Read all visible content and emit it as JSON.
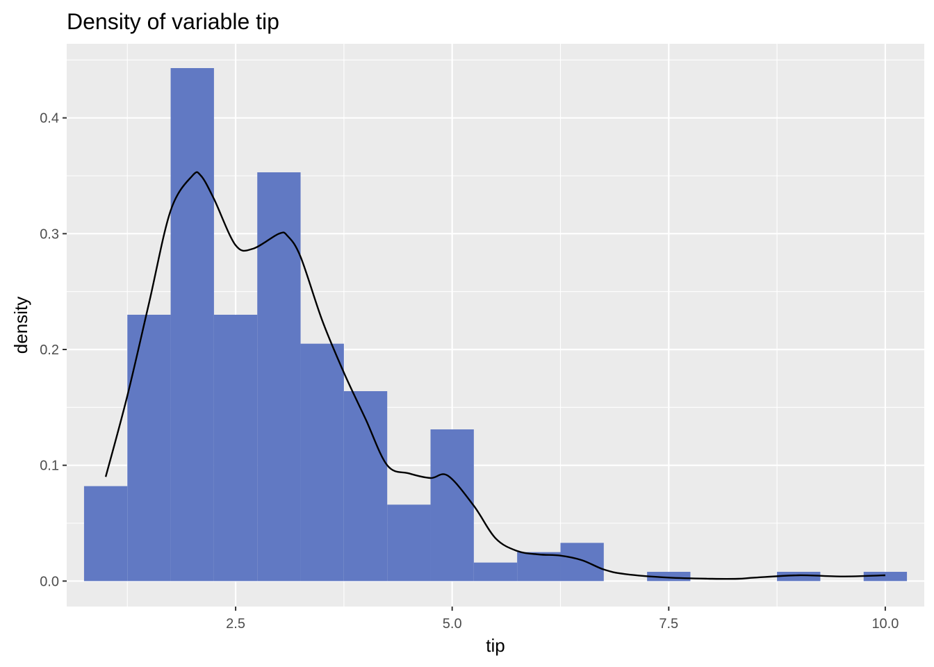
{
  "chart_data": {
    "type": "histogram",
    "title": "Density of variable tip",
    "xlabel": "tip",
    "ylabel": "density",
    "xlim": [
      0.55,
      10.45
    ],
    "ylim": [
      -0.022,
      0.464
    ],
    "x_ticks": [
      2.5,
      5.0,
      7.5,
      10.0
    ],
    "x_tick_labels": [
      "2.5",
      "5.0",
      "7.5",
      "10.0"
    ],
    "y_ticks": [
      0.0,
      0.1,
      0.2,
      0.3,
      0.4
    ],
    "y_tick_labels": [
      "0.0",
      "0.1",
      "0.2",
      "0.3",
      "0.4"
    ],
    "grid": true,
    "bar_color": "#6179c3",
    "background_color": "#ebebeb",
    "line_color": "#000000",
    "series": [
      {
        "type": "histogram",
        "bin_edges": [
          0.75,
          1.25,
          1.75,
          2.25,
          2.75,
          3.25,
          3.75,
          4.25,
          4.75,
          5.25,
          5.75,
          6.25,
          6.75,
          7.25,
          7.75,
          8.25,
          8.75,
          9.25,
          9.75,
          10.25
        ],
        "values": [
          0.082,
          0.23,
          0.443,
          0.23,
          0.353,
          0.205,
          0.164,
          0.066,
          0.131,
          0.016,
          0.025,
          0.033,
          0.0,
          0.008,
          0.0,
          0.0,
          0.008,
          0.0,
          0.008
        ]
      },
      {
        "type": "line",
        "x": [
          1.0,
          1.25,
          1.5,
          1.75,
          2.0,
          2.1,
          2.25,
          2.5,
          2.7,
          3.0,
          3.1,
          3.25,
          3.5,
          3.75,
          4.0,
          4.25,
          4.5,
          4.75,
          4.95,
          5.25,
          5.5,
          5.75,
          6.0,
          6.25,
          6.5,
          6.75,
          7.0,
          7.5,
          8.0,
          8.3,
          8.5,
          9.0,
          9.5,
          10.0
        ],
        "y": [
          0.09,
          0.16,
          0.24,
          0.32,
          0.35,
          0.35,
          0.33,
          0.29,
          0.287,
          0.3,
          0.298,
          0.28,
          0.225,
          0.18,
          0.14,
          0.1,
          0.093,
          0.089,
          0.091,
          0.065,
          0.037,
          0.026,
          0.023,
          0.022,
          0.018,
          0.01,
          0.006,
          0.003,
          0.002,
          0.002,
          0.003,
          0.005,
          0.004,
          0.005
        ]
      }
    ]
  }
}
